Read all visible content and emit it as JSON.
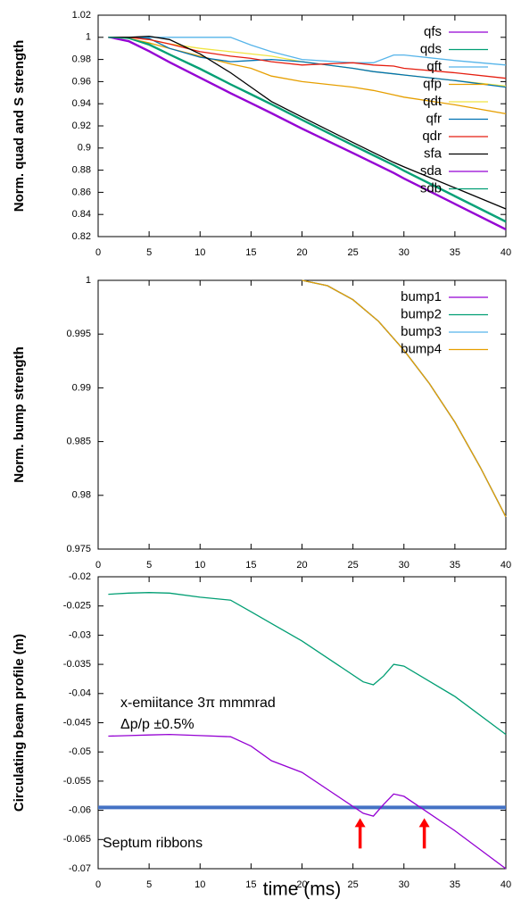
{
  "chart_data": [
    {
      "type": "line",
      "ylabel": "Norm. quad and S strength",
      "x": [
        1,
        3,
        5,
        7,
        10,
        13,
        15,
        17,
        20,
        25,
        27,
        29,
        30,
        35,
        40
      ],
      "xlim": [
        0,
        40
      ],
      "xticks": [
        0,
        5,
        10,
        15,
        20,
        25,
        30,
        35,
        40
      ],
      "ylim": [
        0.82,
        1.02
      ],
      "yticks": [
        0.82,
        0.84,
        0.86,
        0.88,
        0.9,
        0.92,
        0.94,
        0.96,
        0.98,
        1,
        1.02
      ],
      "legend": "top-right",
      "series": [
        {
          "name": "qfs",
          "color": "#9400d3",
          "values": [
            1,
            0.996,
            0.987,
            0.977,
            0.963,
            0.949,
            0.94,
            0.931,
            0.917,
            0.895,
            0.886,
            0.877,
            0.872,
            0.849,
            0.826
          ]
        },
        {
          "name": "qds",
          "color": "#009e73",
          "values": [
            1,
            0.999,
            0.993,
            0.984,
            0.971,
            0.957,
            0.948,
            0.939,
            0.925,
            0.902,
            0.893,
            0.884,
            0.879,
            0.856,
            0.833
          ]
        },
        {
          "name": "qft",
          "color": "#56b4e9",
          "values": [
            1,
            1,
            1,
            1,
            1,
            1,
            0.993,
            0.987,
            0.98,
            0.977,
            0.977,
            0.984,
            0.984,
            0.979,
            0.975
          ]
        },
        {
          "name": "qfp",
          "color": "#e69f00",
          "values": [
            1,
            0.999,
            0.995,
            0.99,
            0.983,
            0.976,
            0.972,
            0.965,
            0.96,
            0.955,
            0.952,
            0.948,
            0.946,
            0.939,
            0.931
          ]
        },
        {
          "name": "qdt",
          "color": "#f0e442",
          "values": [
            1,
            1,
            0.998,
            0.994,
            0.99,
            0.987,
            0.985,
            0.983,
            0.978,
            0.972,
            0.969,
            0.967,
            0.966,
            0.961,
            0.956
          ]
        },
        {
          "name": "qfr",
          "color": "#0072b2",
          "values": [
            1,
            1,
            0.999,
            0.99,
            0.982,
            0.978,
            0.979,
            0.98,
            0.978,
            0.972,
            0.969,
            0.967,
            0.966,
            0.961,
            0.955
          ]
        },
        {
          "name": "qdr",
          "color": "#e51e10",
          "values": [
            1,
            1,
            0.998,
            0.994,
            0.987,
            0.983,
            0.981,
            0.978,
            0.975,
            0.977,
            0.975,
            0.974,
            0.972,
            0.968,
            0.963
          ]
        },
        {
          "name": "sfa",
          "color": "#000000",
          "values": [
            1,
            1,
            1.001,
            0.998,
            0.985,
            0.968,
            0.955,
            0.942,
            0.928,
            0.905,
            0.896,
            0.887,
            0.883,
            0.864,
            0.845
          ]
        },
        {
          "name": "sda",
          "color": "#9400d3",
          "values": [
            1,
            0.997,
            0.988,
            0.978,
            0.964,
            0.95,
            0.941,
            0.932,
            0.918,
            0.896,
            0.887,
            0.878,
            0.873,
            0.85,
            0.827
          ]
        },
        {
          "name": "sdb",
          "color": "#009e73",
          "values": [
            1,
            0.999,
            0.994,
            0.985,
            0.972,
            0.958,
            0.949,
            0.94,
            0.926,
            0.903,
            0.894,
            0.885,
            0.88,
            0.857,
            0.834
          ]
        }
      ]
    },
    {
      "type": "line",
      "ylabel": "Norm. bump  strength",
      "x": [
        20,
        22.5,
        25,
        27.5,
        30,
        32.5,
        35,
        37.5,
        40
      ],
      "xlim": [
        0,
        40
      ],
      "xticks": [
        0,
        5,
        10,
        15,
        20,
        25,
        30,
        35,
        40
      ],
      "ylim": [
        0.975,
        1
      ],
      "yticks": [
        0.975,
        0.98,
        0.985,
        0.99,
        0.995,
        1
      ],
      "legend": "top-right",
      "series": [
        {
          "name": "bump1",
          "color": "#9400d3",
          "values": [
            1,
            0.9995,
            0.9982,
            0.9962,
            0.9935,
            0.9904,
            0.9868,
            0.9826,
            0.978
          ]
        },
        {
          "name": "bump2",
          "color": "#009e73",
          "values": [
            1,
            0.9995,
            0.9982,
            0.9962,
            0.9935,
            0.9904,
            0.9868,
            0.9826,
            0.978
          ]
        },
        {
          "name": "bump3",
          "color": "#56b4e9",
          "values": [
            1,
            0.9995,
            0.9982,
            0.9962,
            0.9935,
            0.9904,
            0.9868,
            0.9826,
            0.978
          ]
        },
        {
          "name": "bump4",
          "color": "#e69f00",
          "values": [
            1,
            0.9995,
            0.9982,
            0.9962,
            0.9935,
            0.9904,
            0.9868,
            0.9826,
            0.978
          ]
        }
      ]
    },
    {
      "type": "line",
      "ylabel": "Circulating beam profile  (m)",
      "xlabel": "time (ms)",
      "x": [
        1,
        3,
        5,
        7,
        10,
        13,
        15,
        17,
        20,
        23,
        26,
        27,
        28,
        29,
        30,
        35,
        40
      ],
      "xlim": [
        0,
        40
      ],
      "xticks": [
        0,
        5,
        10,
        15,
        20,
        25,
        30,
        35,
        40
      ],
      "ylim": [
        -0.07,
        -0.02
      ],
      "yticks": [
        -0.07,
        -0.065,
        -0.06,
        -0.055,
        -0.05,
        -0.045,
        -0.04,
        -0.035,
        -0.03,
        -0.025,
        -0.02
      ],
      "series": [
        {
          "color": "#009e73",
          "values": [
            -0.023,
            -0.0228,
            -0.0227,
            -0.0228,
            -0.0235,
            -0.024,
            -0.026,
            -0.028,
            -0.031,
            -0.0345,
            -0.038,
            -0.0385,
            -0.037,
            -0.035,
            -0.0353,
            -0.0405,
            -0.047
          ]
        },
        {
          "color": "#9400d3",
          "values": [
            -0.0473,
            -0.0472,
            -0.0471,
            -0.047,
            -0.0472,
            -0.0474,
            -0.049,
            -0.0515,
            -0.0535,
            -0.057,
            -0.0605,
            -0.061,
            -0.059,
            -0.0572,
            -0.0576,
            -0.0635,
            -0.07
          ]
        }
      ],
      "septum_y": -0.0595,
      "septum_color": "#4472c4",
      "arrows_x": [
        25.7,
        32
      ],
      "arrow_color": "#ff0000",
      "annotations": [
        "x-emiitance 3π mmmrad",
        "Δp/p ±0.5%",
        "Septum ribbons"
      ]
    }
  ]
}
